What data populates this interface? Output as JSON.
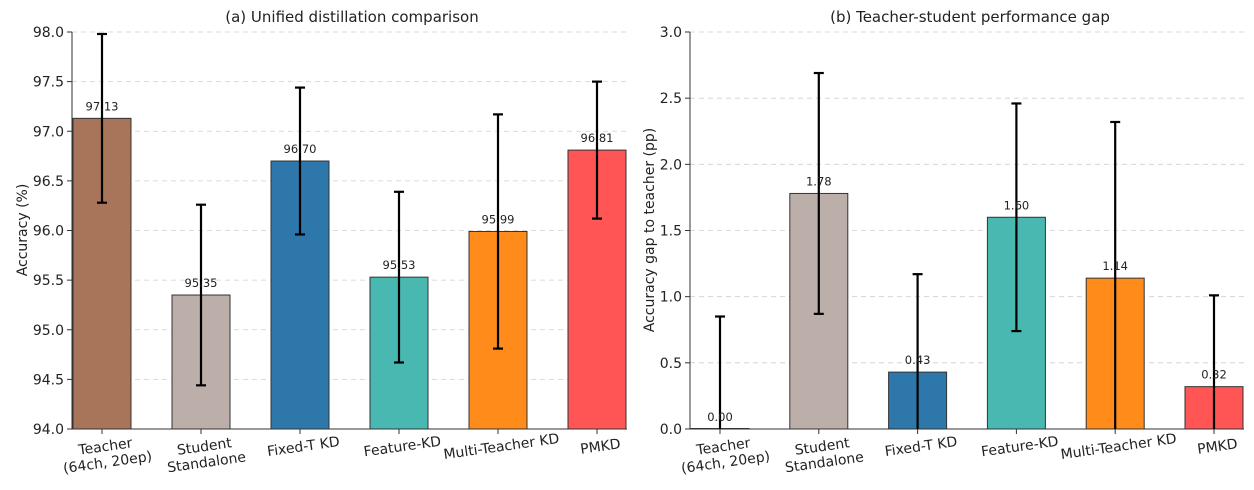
{
  "chart_data": [
    {
      "type": "bar",
      "title": "(a) Unified distillation comparison",
      "xlabel": "",
      "ylabel": "Accuracy (%)",
      "ylim": [
        94.0,
        98.0
      ],
      "yticks": [
        "94.0",
        "94.5",
        "95.0",
        "95.5",
        "96.0",
        "96.5",
        "97.0",
        "97.5",
        "98.0"
      ],
      "grid": true,
      "categories": [
        [
          "Teacher",
          "(64ch, 20ep)"
        ],
        [
          "Student",
          "Standalone"
        ],
        [
          "Fixed-T KD"
        ],
        [
          "Feature-KD"
        ],
        [
          "Multi-Teacher KD"
        ],
        [
          "PMKD"
        ]
      ],
      "values": [
        97.13,
        95.35,
        96.7,
        95.53,
        95.99,
        96.81
      ],
      "value_labels": [
        "97.13",
        "95.35",
        "96.70",
        "95.53",
        "95.99",
        "96.81"
      ],
      "error_low": [
        96.28,
        94.44,
        95.96,
        94.67,
        94.81,
        96.12
      ],
      "error_high": [
        97.98,
        96.26,
        97.44,
        96.39,
        97.17,
        97.5
      ],
      "colors": [
        "#a8745a",
        "#bcaea9",
        "#2e77aa",
        "#48b8b0",
        "#ff8c1a",
        "#ff5555"
      ]
    },
    {
      "type": "bar",
      "title": "(b) Teacher-student performance gap",
      "xlabel": "",
      "ylabel": "Accuracy gap to teacher (pp)",
      "ylim": [
        0.0,
        3.0
      ],
      "yticks": [
        "0.0",
        "0.5",
        "1.0",
        "1.5",
        "2.0",
        "2.5",
        "3.0"
      ],
      "grid": true,
      "categories": [
        [
          "Teacher",
          "(64ch, 20ep)"
        ],
        [
          "Student",
          "Standalone"
        ],
        [
          "Fixed-T KD"
        ],
        [
          "Feature-KD"
        ],
        [
          "Multi-Teacher KD"
        ],
        [
          "PMKD"
        ]
      ],
      "values": [
        0.0,
        1.78,
        0.43,
        1.6,
        1.14,
        0.32
      ],
      "value_labels": [
        "0.00",
        "1.78",
        "0.43",
        "1.60",
        "1.14",
        "0.32"
      ],
      "error_low": [
        0.0,
        0.87,
        0.0,
        0.74,
        0.0,
        0.0
      ],
      "error_high": [
        0.85,
        2.69,
        1.17,
        2.46,
        2.32,
        1.01
      ],
      "colors": [
        "#a8745a",
        "#bcaea9",
        "#2e77aa",
        "#48b8b0",
        "#ff8c1a",
        "#ff5555"
      ]
    }
  ]
}
